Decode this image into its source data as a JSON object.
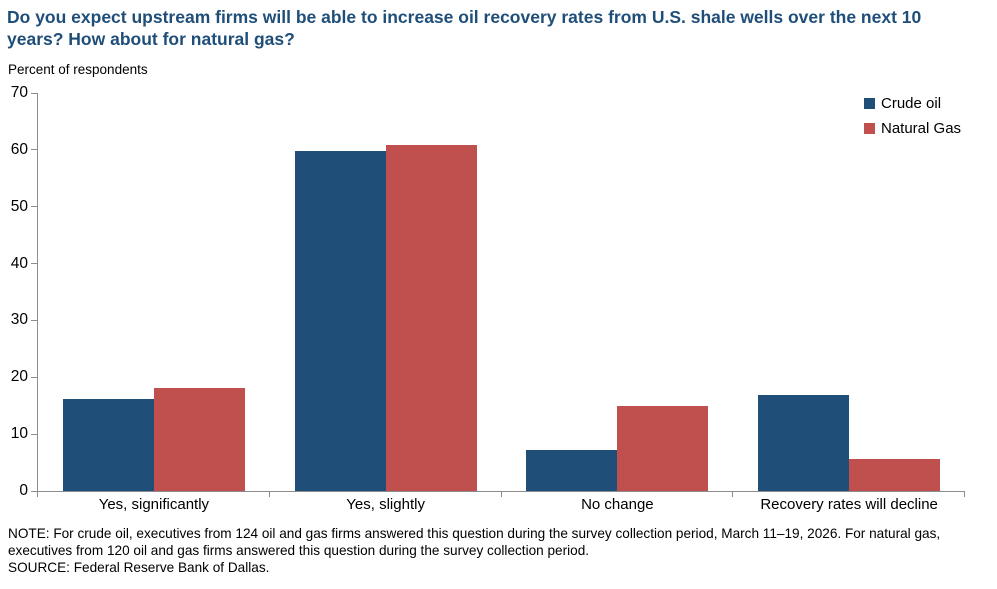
{
  "page": {
    "note": "NOTE: For crude oil, executives from 124 oil and gas firms answered this question during the survey collection period, March 11–19, 2026. For natural gas, executives from 120 oil and gas firms answered this question during the survey collection period.",
    "source": "SOURCE: Federal Reserve Bank of Dallas."
  },
  "colors": {
    "title_text": "#1F4E79",
    "axis": "#8C8C8C",
    "crude_oil": "#1F4E79",
    "natural_gas": "#C0504D"
  },
  "chart_data": {
    "type": "bar",
    "title": "Do you expect upstream firms will be able to increase oil recovery rates from U.S. shale wells over the next 10 years? How about for natural gas?",
    "subtitle": "Percent of respondents",
    "xlabel": "",
    "ylabel": "Percent of respondents",
    "categories": [
      "Yes, significantly",
      "Yes, slightly",
      "No change",
      "Recovery rates will decline"
    ],
    "series": [
      {
        "name": "Crude oil",
        "color": "#1F4E79",
        "values": [
          16.1,
          59.8,
          7.3,
          16.9
        ]
      },
      {
        "name": "Natural Gas",
        "color": "#C0504D",
        "values": [
          18.1,
          60.9,
          15.0,
          5.7
        ]
      }
    ],
    "ylim": [
      0,
      70
    ],
    "yticks": [
      0,
      10,
      20,
      30,
      40,
      50,
      60,
      70
    ],
    "grid": false,
    "legend_position": "top-right"
  }
}
